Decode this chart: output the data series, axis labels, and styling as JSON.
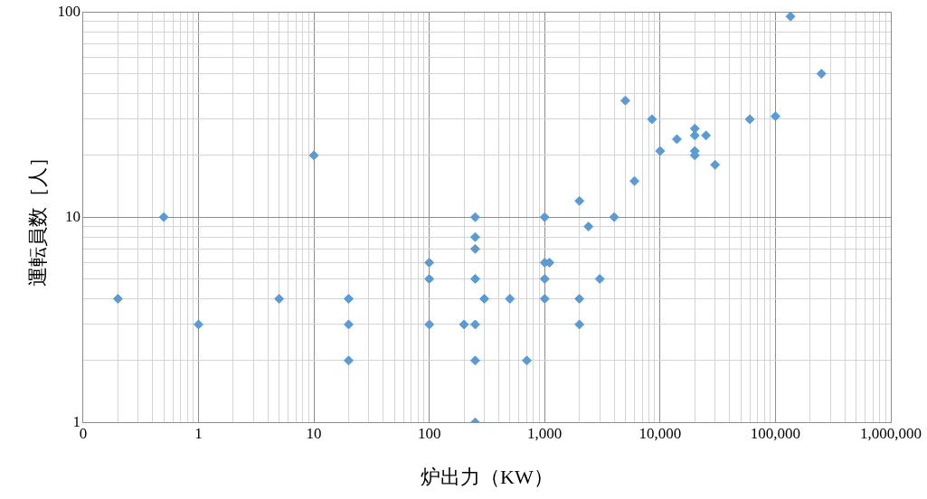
{
  "chart_data": {
    "type": "scatter",
    "xlabel": "炉出力（KW）",
    "ylabel": "運転員数［人］",
    "log": "xy",
    "grid": true,
    "marker": "diamond",
    "legend": false,
    "xlim": [
      0.1,
      1000000
    ],
    "xticks": [
      {
        "value": 0.1,
        "label": "0"
      },
      {
        "value": 0.2,
        "label": null
      },
      {
        "value": 0.3,
        "label": null
      },
      {
        "value": 0.4,
        "label": null
      },
      {
        "value": 0.5,
        "label": null
      },
      {
        "value": 0.6,
        "label": null
      },
      {
        "value": 0.7,
        "label": null
      },
      {
        "value": 0.8,
        "label": null
      },
      {
        "value": 0.9,
        "label": null
      },
      1,
      {
        "value": 2,
        "label": null
      },
      {
        "value": 3,
        "label": null
      },
      {
        "value": 4,
        "label": null
      },
      {
        "value": 5,
        "label": null
      },
      {
        "value": 6,
        "label": null
      },
      {
        "value": 7,
        "label": null
      },
      {
        "value": 8,
        "label": null
      },
      {
        "value": 9,
        "label": null
      },
      10,
      {
        "value": 20,
        "label": null
      },
      {
        "value": 30,
        "label": null
      },
      {
        "value": 40,
        "label": null
      },
      {
        "value": 50,
        "label": null
      },
      {
        "value": 60,
        "label": null
      },
      {
        "value": 70,
        "label": null
      },
      {
        "value": 80,
        "label": null
      },
      {
        "value": 90,
        "label": null
      },
      100,
      {
        "value": 200,
        "label": null
      },
      {
        "value": 300,
        "label": null
      },
      {
        "value": 400,
        "label": null
      },
      {
        "value": 500,
        "label": null
      },
      {
        "value": 600,
        "label": null
      },
      {
        "value": 700,
        "label": null
      },
      {
        "value": 800,
        "label": null
      },
      {
        "value": 900,
        "label": null
      },
      {
        "value": 1000,
        "label": "1,000"
      },
      {
        "value": 2000,
        "label": null
      },
      {
        "value": 3000,
        "label": null
      },
      {
        "value": 4000,
        "label": null
      },
      {
        "value": 5000,
        "label": null
      },
      {
        "value": 6000,
        "label": null
      },
      {
        "value": 7000,
        "label": null
      },
      {
        "value": 8000,
        "label": null
      },
      {
        "value": 9000,
        "label": null
      },
      {
        "value": 10000,
        "label": "10,000"
      },
      {
        "value": 20000,
        "label": null
      },
      {
        "value": 30000,
        "label": null
      },
      {
        "value": 40000,
        "label": null
      },
      {
        "value": 50000,
        "label": null
      },
      {
        "value": 60000,
        "label": null
      },
      {
        "value": 70000,
        "label": null
      },
      {
        "value": 80000,
        "label": null
      },
      {
        "value": 90000,
        "label": null
      },
      {
        "value": 100000,
        "label": "100,000"
      },
      {
        "value": 200000,
        "label": null
      },
      {
        "value": 300000,
        "label": null
      },
      {
        "value": 400000,
        "label": null
      },
      {
        "value": 500000,
        "label": null
      },
      {
        "value": 600000,
        "label": null
      },
      {
        "value": 700000,
        "label": null
      },
      {
        "value": 800000,
        "label": null
      },
      {
        "value": 900000,
        "label": null
      },
      {
        "value": 1000000,
        "label": "1,000,000"
      }
    ],
    "ylim": [
      1,
      100
    ],
    "yticks": [
      1,
      {
        "value": 2,
        "label": null
      },
      {
        "value": 3,
        "label": null
      },
      {
        "value": 4,
        "label": null
      },
      {
        "value": 5,
        "label": null
      },
      {
        "value": 6,
        "label": null
      },
      {
        "value": 7,
        "label": null
      },
      {
        "value": 8,
        "label": null
      },
      {
        "value": 9,
        "label": null
      },
      10,
      {
        "value": 20,
        "label": null
      },
      {
        "value": 30,
        "label": null
      },
      {
        "value": 40,
        "label": null
      },
      {
        "value": 50,
        "label": null
      },
      {
        "value": 60,
        "label": null
      },
      {
        "value": 70,
        "label": null
      },
      {
        "value": 80,
        "label": null
      },
      {
        "value": 90,
        "label": null
      },
      100
    ],
    "series": [
      {
        "color": "#5b9bd5",
        "x": [
          0.2,
          0.5,
          1,
          5,
          10,
          20,
          20,
          20,
          100,
          100,
          100,
          200,
          250,
          250,
          250,
          250,
          250,
          250,
          250,
          300,
          500,
          700,
          1000,
          1000,
          1000,
          1000,
          1100,
          2000,
          2000,
          2000,
          2400,
          3000,
          4000,
          5000,
          6000,
          8500,
          10000,
          14000,
          20000,
          20000,
          20000,
          20000,
          25000,
          30000,
          60000,
          100000,
          135000,
          250000
        ],
        "values": [
          4,
          10,
          3,
          4,
          20,
          4,
          3,
          2,
          6,
          5,
          3,
          3,
          10,
          8,
          7,
          5,
          3,
          2,
          1,
          4,
          4,
          2,
          10,
          6,
          5,
          4,
          6,
          12,
          4,
          3,
          9,
          5,
          10,
          37,
          15,
          30,
          21,
          24,
          27,
          25,
          21,
          20,
          25,
          18,
          30,
          31,
          95,
          50
        ]
      }
    ]
  }
}
